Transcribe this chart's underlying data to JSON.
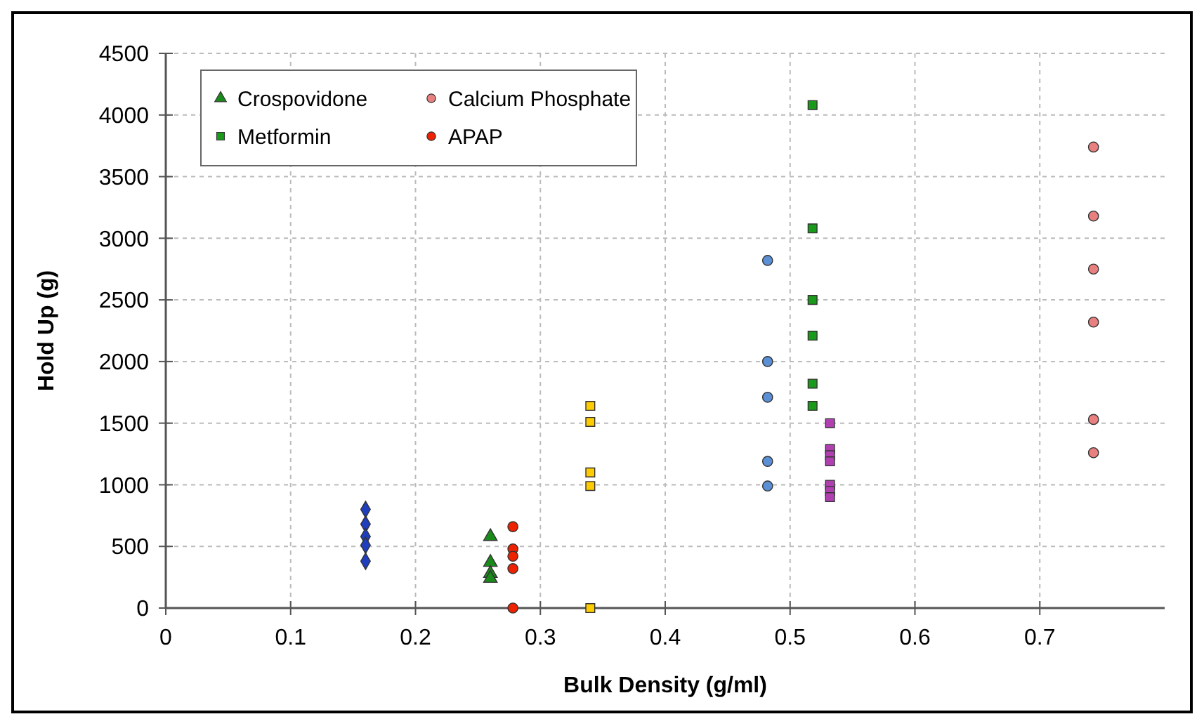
{
  "chart_data": {
    "type": "scatter",
    "xlabel": "Bulk Density (g/ml)",
    "ylabel": "Hold Up (g)",
    "xlim": [
      0,
      0.8
    ],
    "xticks": [
      0,
      0.1,
      0.2,
      0.3,
      0.4,
      0.5,
      0.6,
      0.7
    ],
    "ylim": [
      0,
      4500
    ],
    "yticks": [
      0,
      500,
      1000,
      1500,
      2000,
      2500,
      3000,
      3500,
      4000,
      4500
    ],
    "grid": true,
    "legend": "top left",
    "series": [
      {
        "color": "#1f3fbf",
        "marker": "diamond",
        "x": [
          0.16,
          0.16,
          0.16,
          0.16,
          0.16
        ],
        "values": [
          800,
          680,
          580,
          510,
          380
        ]
      },
      {
        "color": "#ffcc00",
        "marker": "square",
        "x": [
          0.34,
          0.34,
          0.34,
          0.34,
          0.34
        ],
        "values": [
          1640,
          1510,
          1100,
          990,
          0
        ]
      },
      {
        "name": "Crospovidone",
        "color": "#1a8a1a",
        "marker": "triangle",
        "x": [
          0.26,
          0.26,
          0.26,
          0.26
        ],
        "values": [
          580,
          370,
          280,
          240
        ]
      },
      {
        "color": "#5b8fd6",
        "marker": "circle",
        "x": [
          0.482,
          0.482,
          0.482,
          0.482,
          0.482
        ],
        "values": [
          2820,
          2000,
          1710,
          1190,
          990
        ]
      },
      {
        "name": "Metformin",
        "color": "#1a9a1a",
        "marker": "square",
        "x": [
          0.518,
          0.518,
          0.518,
          0.518,
          0.518,
          0.518
        ],
        "values": [
          4080,
          3080,
          2500,
          2210,
          1820,
          1640
        ]
      },
      {
        "name": "Calcium Phosphate",
        "color": "#e88080",
        "marker": "circle",
        "x": [
          0.743,
          0.743,
          0.743,
          0.743,
          0.743,
          0.743
        ],
        "values": [
          3740,
          3180,
          2750,
          2320,
          1530,
          1260
        ]
      },
      {
        "color": "#b040b0",
        "marker": "square",
        "x": [
          0.532,
          0.532,
          0.532,
          0.532,
          0.532,
          0.532,
          0.532
        ],
        "values": [
          1500,
          1290,
          1240,
          1190,
          1000,
          950,
          900
        ]
      },
      {
        "name": "APAP",
        "color": "#ee2200",
        "marker": "circle",
        "x": [
          0.278,
          0.278,
          0.278,
          0.278,
          0.278
        ],
        "values": [
          660,
          480,
          420,
          320,
          0
        ]
      }
    ]
  }
}
